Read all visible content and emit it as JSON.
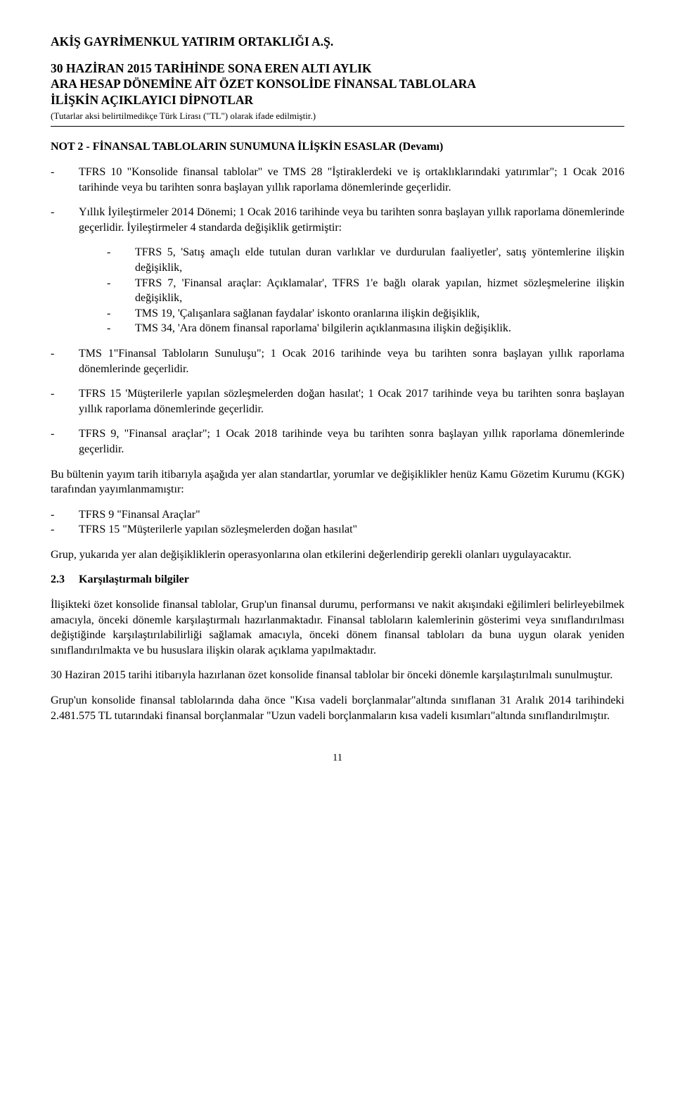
{
  "company": "AKİŞ GAYRİMENKUL YATIRIM ORTAKLIĞI A.Ş.",
  "header": {
    "line1": "30 HAZİRAN 2015 TARİHİNDE SONA EREN ALTI AYLIK",
    "line2": "ARA HESAP DÖNEMİNE AİT ÖZET KONSOLİDE FİNANSAL TABLOLARA",
    "line3": "İLİŞKİN AÇIKLAYICI DİPNOTLAR",
    "note": "(Tutarlar aksi belirtilmedikçe Türk Lirası (\"TL\") olarak ifade edilmiştir.)"
  },
  "section_title": "NOT 2 - FİNANSAL TABLOLARIN SUNUMUNA İLİŞKİN ESASLAR (Devamı)",
  "bullets_top": [
    "TFRS 10 \"Konsolide finansal tablolar\" ve TMS 28 \"İştiraklerdeki ve iş ortaklıklarındaki yatırımlar\"; 1 Ocak 2016 tarihinde veya bu tarihten sonra başlayan yıllık raporlama dönemlerinde geçerlidir.",
    "Yıllık İyileştirmeler 2014 Dönemi; 1 Ocak 2016 tarihinde veya bu tarihten sonra başlayan yıllık raporlama dönemlerinde geçerlidir. İyileştirmeler 4 standarda değişiklik getirmiştir:"
  ],
  "nested": [
    "TFRS 5, 'Satış amaçlı elde tutulan duran varlıklar ve durdurulan faaliyetler', satış yöntemlerine ilişkin değişiklik,",
    "TFRS 7, 'Finansal araçlar: Açıklamalar', TFRS 1'e bağlı olarak yapılan, hizmet sözleşmelerine ilişkin değişiklik,",
    "TMS 19, 'Çalışanlara sağlanan faydalar' iskonto oranlarına ilişkin değişiklik,",
    "TMS 34, 'Ara dönem finansal raporlama' bilgilerin açıklanmasına ilişkin değişiklik."
  ],
  "bullets_mid": [
    "TMS 1\"Finansal Tabloların Sunuluşu\"; 1 Ocak 2016 tarihinde veya bu tarihten sonra başlayan yıllık raporlama dönemlerinde geçerlidir.",
    "TFRS 15 'Müşterilerle yapılan sözleşmelerden doğan hasılat'; 1 Ocak 2017  tarihinde veya bu tarihten sonra başlayan yıllık raporlama dönemlerinde geçerlidir.",
    "TFRS 9, \"Finansal araçlar\"; 1 Ocak 2018 tarihinde veya bu tarihten sonra başlayan yıllık raporlama dönemlerinde geçerlidir."
  ],
  "para_bulletin": "Bu bültenin yayım tarih itibarıyla aşağıda yer alan standartlar, yorumlar ve değişiklikler henüz Kamu Gözetim Kurumu (KGK) tarafından yayımlanmamıştır:",
  "bullets_unpub": [
    "TFRS 9 \"Finansal Araçlar\"",
    "TFRS 15 \"Müşterilerle yapılan sözleşmelerden doğan hasılat\""
  ],
  "para_group": "Grup, yukarıda yer alan değişikliklerin operasyonlarına olan etkilerini değerlendirip gerekli olanları uygulayacaktır.",
  "subsection": {
    "num": "2.3",
    "title": "Karşılaştırmalı bilgiler"
  },
  "para_23_1": "İlişikteki özet konsolide finansal tablolar, Grup'un finansal durumu, performansı ve nakit akışındaki eğilimleri belirleyebilmek amacıyla, önceki dönemle karşılaştırmalı hazırlanmaktadır. Finansal tabloların kalemlerinin gösterimi veya sınıflandırılması değiştiğinde karşılaştırılabilirliği sağlamak amacıyla, önceki dönem finansal tabloları da buna uygun olarak yeniden sınıflandırılmakta ve bu hususlara ilişkin olarak açıklama yapılmaktadır.",
  "para_23_2": "30 Haziran 2015 tarihi itibarıyla hazırlanan özet konsolide finansal tablolar bir önceki dönemle karşılaştırılmalı sunulmuştur.",
  "para_23_3": "Grup'un konsolide finansal tablolarında daha önce \"Kısa vadeli borçlanmalar\"altında sınıflanan 31 Aralık 2014 tarihindeki 2.481.575 TL tutarındaki finansal borçlanmalar \"Uzun vadeli borçlanmaların kısa vadeli kısımları\"altında sınıflandırılmıştır.",
  "page_number": "11",
  "dash": "-"
}
